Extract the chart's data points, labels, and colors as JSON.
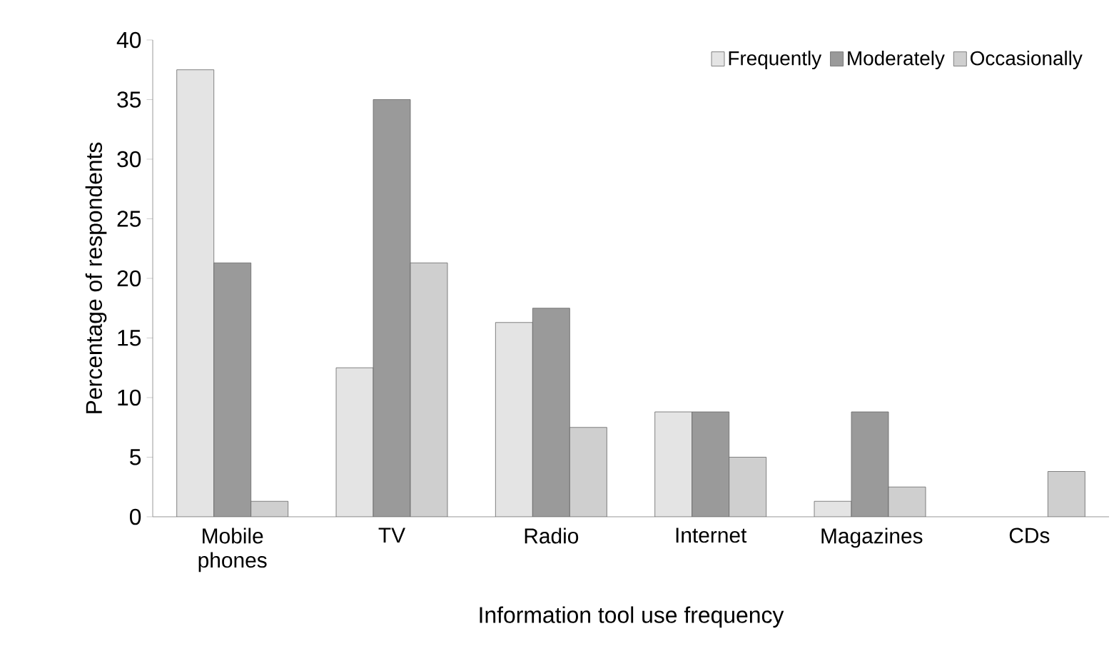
{
  "chart_data": {
    "type": "bar",
    "xlabel": "Information tool use frequency",
    "ylabel": "Percentage of respondents",
    "categories": [
      "Mobile phones",
      "TV",
      "Radio",
      "Internet",
      "Magazines",
      "CDs"
    ],
    "series": [
      {
        "name": "Frequently",
        "color": "#e4e4e4",
        "values": [
          37.5,
          12.5,
          16.3,
          8.8,
          1.3,
          null
        ]
      },
      {
        "name": "Moderately",
        "color": "#9a9a9a",
        "values": [
          21.3,
          35,
          17.5,
          8.8,
          8.8,
          null
        ]
      },
      {
        "name": "Occasionally",
        "color": "#cfcfcf",
        "values": [
          1.3,
          21.3,
          7.5,
          5,
          2.5,
          3.8
        ]
      }
    ],
    "ylim": [
      0,
      40
    ],
    "yticks": [
      0,
      5,
      10,
      15,
      20,
      25,
      30,
      35,
      40
    ],
    "grid": false,
    "legend": "top right"
  }
}
